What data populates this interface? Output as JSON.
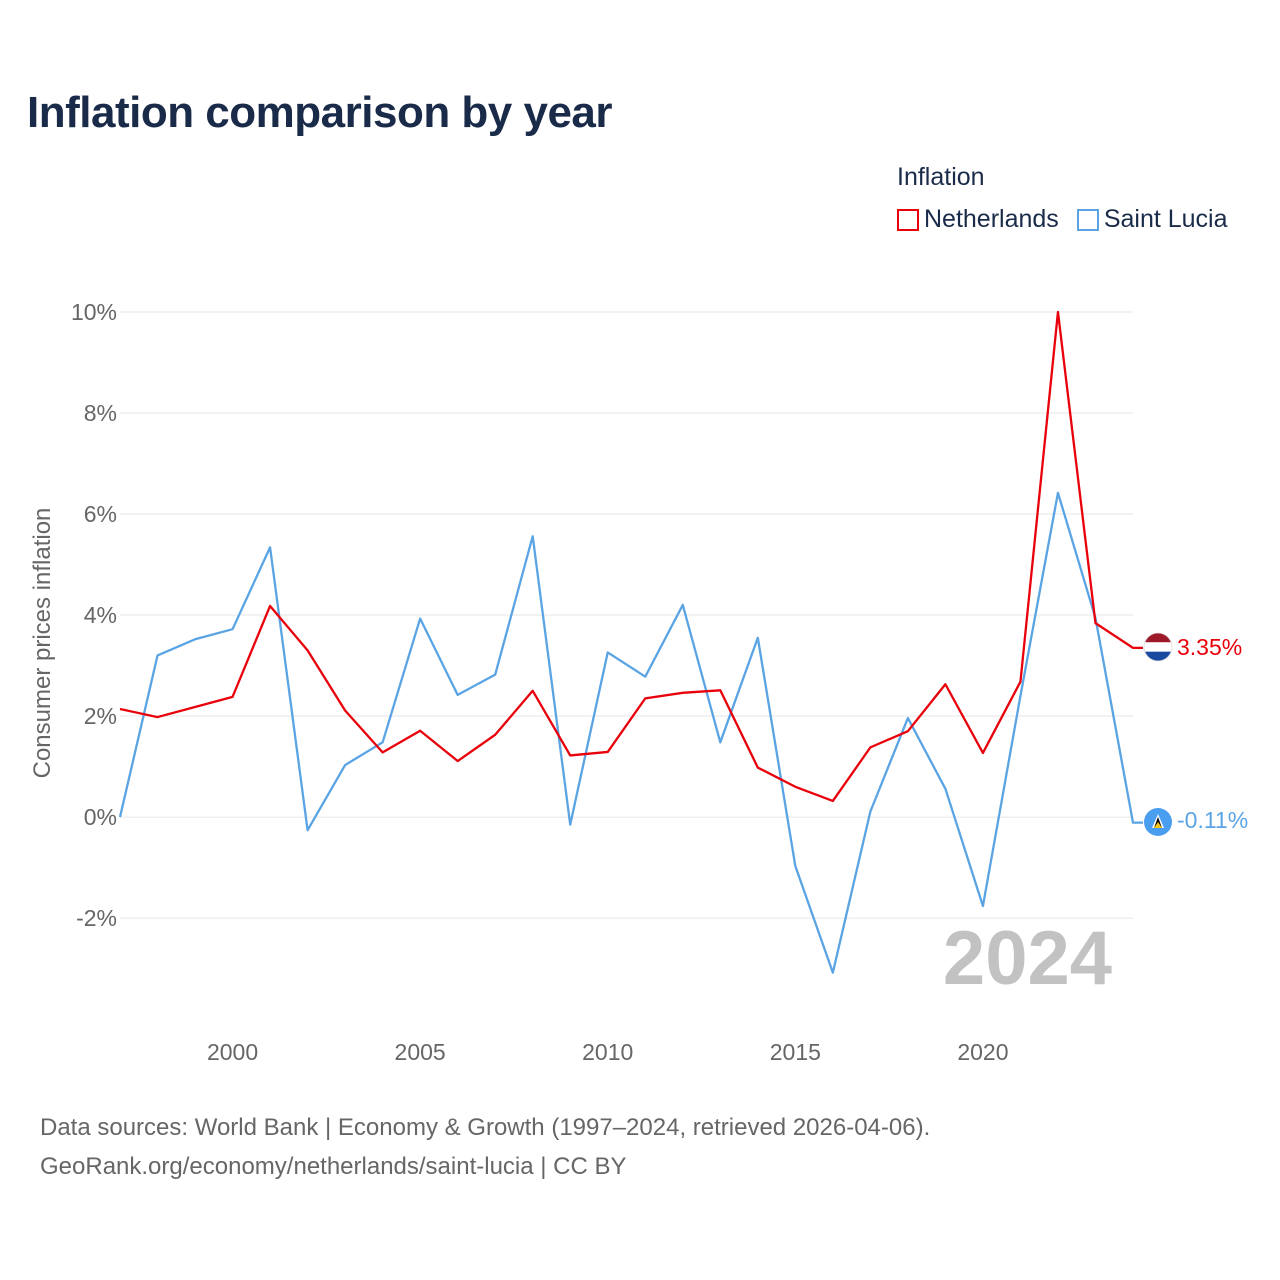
{
  "title": "Inflation comparison by year",
  "legend": {
    "title": "Inflation",
    "items": [
      {
        "name": "Netherlands",
        "color": "#e8000b"
      },
      {
        "name": "Saint Lucia",
        "color": "#5aa4e4"
      }
    ]
  },
  "chart_data": {
    "type": "line",
    "ylabel": "Consumer prices inflation",
    "xlabel": "",
    "ylim": [
      -3.8,
      10
    ],
    "xlim": [
      1997,
      2024
    ],
    "yticks": [
      -2,
      0,
      2,
      4,
      6,
      8,
      10
    ],
    "ytick_labels": [
      "-2%",
      "0%",
      "2%",
      "4%",
      "6%",
      "8%",
      "10%"
    ],
    "xticks": [
      2000,
      2005,
      2010,
      2015,
      2020
    ],
    "xtick_labels": [
      "2000",
      "2005",
      "2010",
      "2015",
      "2020"
    ],
    "x": [
      1997,
      1998,
      1999,
      2000,
      2001,
      2002,
      2003,
      2004,
      2005,
      2006,
      2007,
      2008,
      2009,
      2010,
      2011,
      2012,
      2013,
      2014,
      2015,
      2016,
      2017,
      2018,
      2019,
      2020,
      2021,
      2022,
      2023,
      2024
    ],
    "series": [
      {
        "name": "Netherlands",
        "color": "#e8000b",
        "values": [
          2.14,
          1.98,
          2.18,
          2.38,
          4.18,
          3.3,
          2.11,
          1.28,
          1.71,
          1.11,
          1.63,
          2.5,
          1.22,
          1.29,
          2.35,
          2.46,
          2.51,
          0.98,
          0.6,
          0.32,
          1.38,
          1.7,
          2.63,
          1.27,
          2.68,
          10.0,
          3.84,
          3.35
        ]
      },
      {
        "name": "Saint Lucia",
        "color": "#5aa4e4",
        "values": [
          0.0,
          3.2,
          3.52,
          3.72,
          5.34,
          -0.26,
          1.03,
          1.48,
          3.93,
          2.42,
          2.82,
          5.56,
          -0.15,
          3.26,
          2.78,
          4.2,
          1.48,
          3.55,
          -0.97,
          -3.08,
          0.11,
          1.96,
          0.56,
          -1.76,
          2.4,
          6.42,
          3.94,
          -0.11
        ]
      }
    ],
    "end_labels": [
      "3.35%",
      "-0.11%"
    ],
    "year_watermark": "2024"
  },
  "footer": {
    "line1": "Data sources: World Bank | Economy & Growth (1997–2024, retrieved 2026-04-06).",
    "line2": "GeoRank.org/economy/netherlands/saint-lucia | CC BY"
  }
}
